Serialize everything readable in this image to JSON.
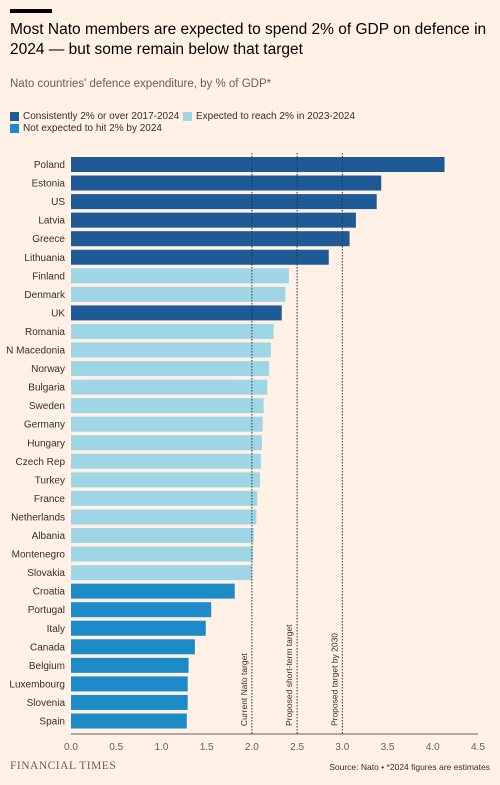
{
  "title": "Most Nato members are expected to spend 2% of GDP on defence in 2024 — but some remain below that target",
  "subtitle": "Nato countries' defence expenditure, by % of GDP*",
  "colors": {
    "consistent": "#1d5a96",
    "expected": "#9fd6e6",
    "not_expected": "#1e8bc9",
    "background": "#fff1e5"
  },
  "legend": [
    {
      "key": "consistent",
      "label": "Consistently 2% or over 2017-2024"
    },
    {
      "key": "expected",
      "label": "Expected to reach 2% in 2023-2024"
    },
    {
      "key": "not_expected",
      "label": "Not expected to hit 2% by 2024"
    }
  ],
  "chart_data": {
    "type": "bar",
    "orientation": "horizontal",
    "xlim": [
      0,
      4.5
    ],
    "xticks": [
      0.0,
      0.5,
      1.0,
      1.5,
      2.0,
      2.5,
      3.0,
      3.5,
      4.0,
      4.5
    ],
    "grid": false,
    "categories": [
      "Poland",
      "Estonia",
      "US",
      "Latvia",
      "Greece",
      "Lithuania",
      "Finland",
      "Denmark",
      "UK",
      "Romania",
      "N Macedonia",
      "Norway",
      "Bulgaria",
      "Sweden",
      "Germany",
      "Hungary",
      "Czech Rep",
      "Turkey",
      "France",
      "Netherlands",
      "Albania",
      "Montenegro",
      "Slovakia",
      "Croatia",
      "Portugal",
      "Italy",
      "Canada",
      "Belgium",
      "Luxembourg",
      "Slovenia",
      "Spain"
    ],
    "values": [
      4.13,
      3.43,
      3.38,
      3.15,
      3.08,
      2.85,
      2.41,
      2.37,
      2.33,
      2.24,
      2.21,
      2.19,
      2.17,
      2.13,
      2.12,
      2.11,
      2.1,
      2.09,
      2.06,
      2.05,
      2.02,
      2.01,
      2.0,
      1.81,
      1.55,
      1.49,
      1.37,
      1.3,
      1.29,
      1.29,
      1.28
    ],
    "groups": [
      "consistent",
      "consistent",
      "consistent",
      "consistent",
      "consistent",
      "consistent",
      "expected",
      "expected",
      "consistent",
      "expected",
      "expected",
      "expected",
      "expected",
      "expected",
      "expected",
      "expected",
      "expected",
      "expected",
      "expected",
      "expected",
      "expected",
      "expected",
      "expected",
      "not_expected",
      "not_expected",
      "not_expected",
      "not_expected",
      "not_expected",
      "not_expected",
      "not_expected",
      "not_expected"
    ],
    "reference_lines": [
      {
        "value": 2.0,
        "label": "Current Nato target"
      },
      {
        "value": 2.5,
        "label": "Proposed short-term target"
      },
      {
        "value": 3.0,
        "label": "Proposed target by 2030"
      }
    ]
  },
  "footer": {
    "brand": "FINANCIAL TIMES",
    "source": "Source: Nato • *2024 figures are estimates"
  }
}
